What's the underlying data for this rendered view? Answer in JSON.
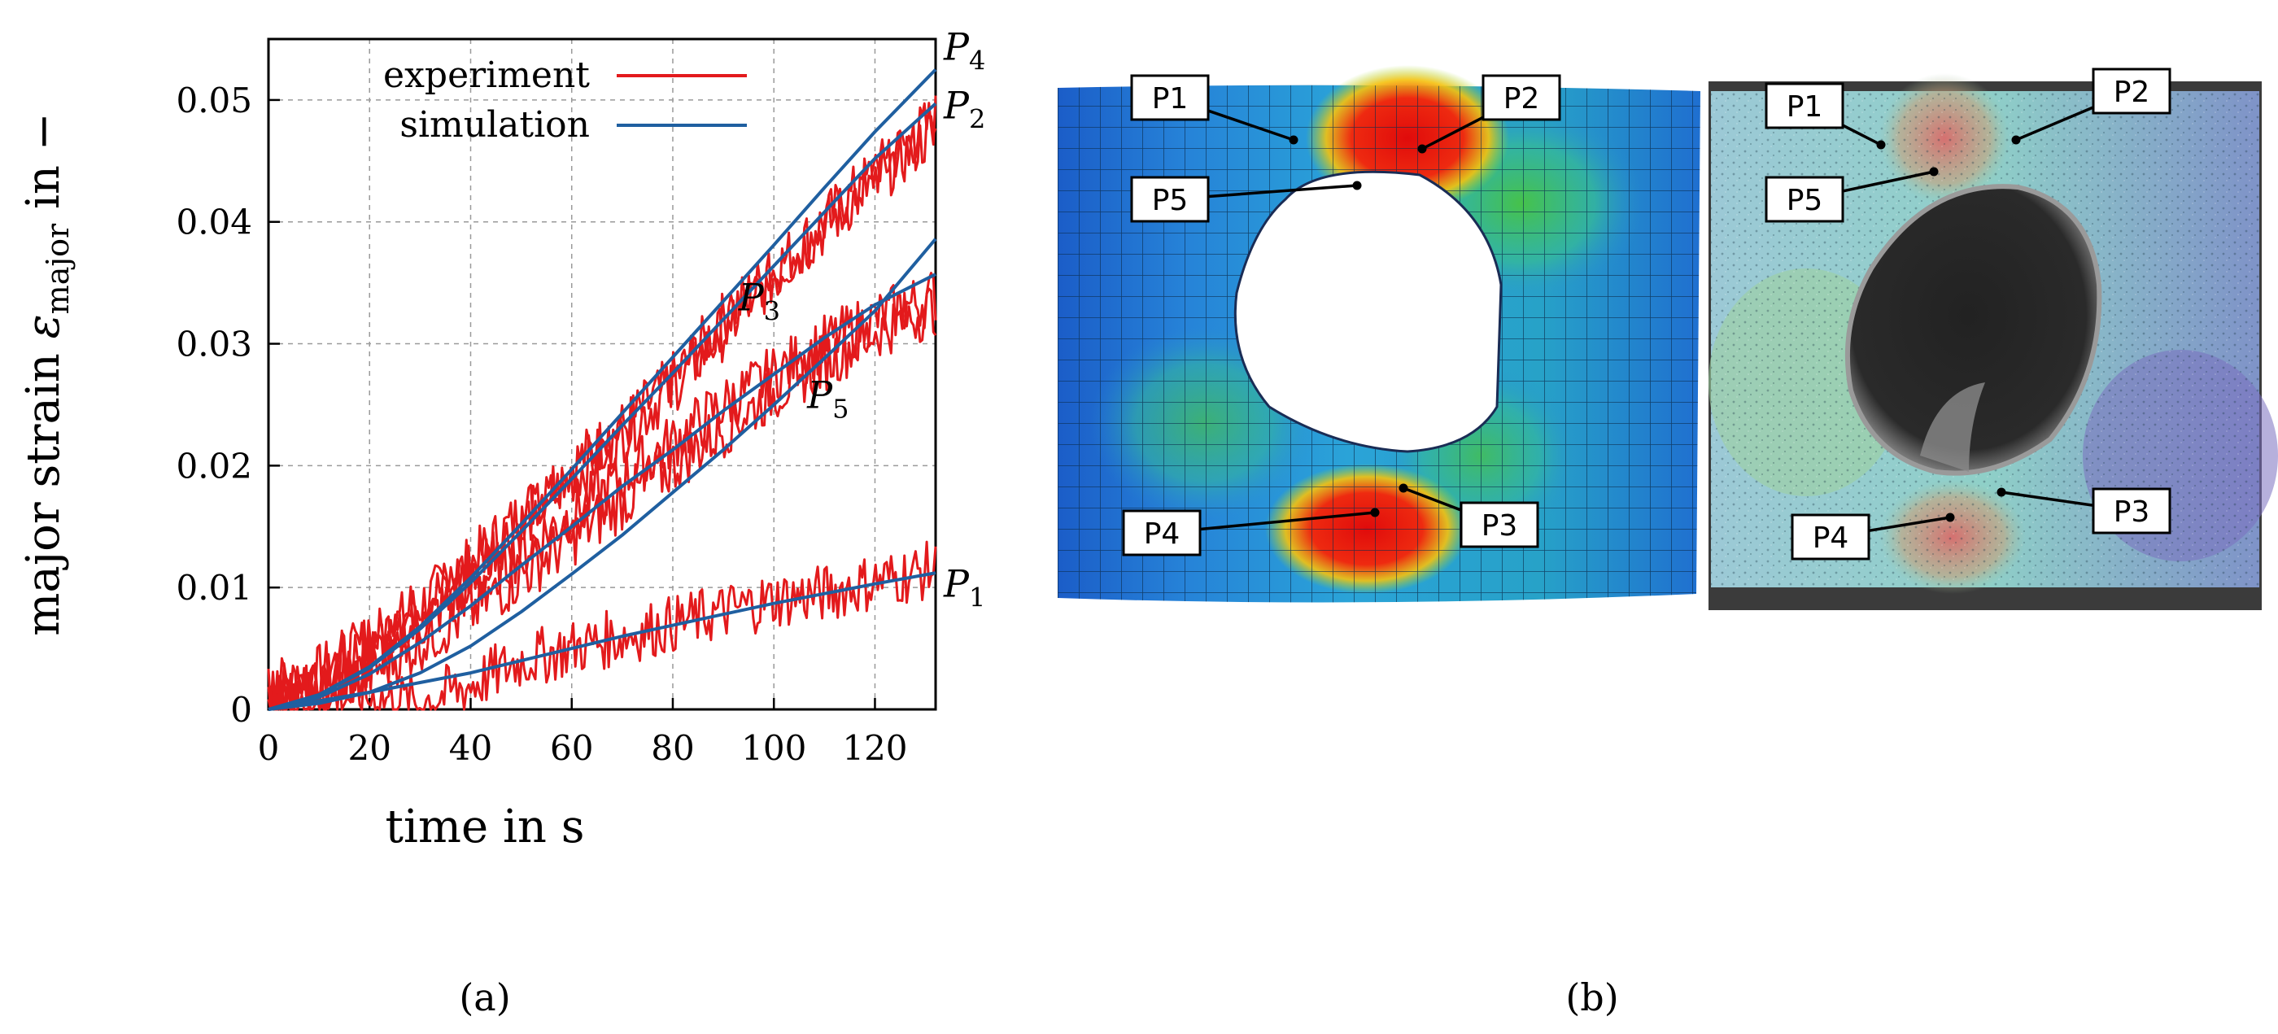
{
  "chart_data": {
    "type": "line",
    "title": "",
    "xlabel": "time in s",
    "ylabel_prefix": "major strain ",
    "ylabel_symbol": "ε",
    "ylabel_subscript": "major",
    "ylabel_suffix": " in −",
    "xlim": [
      0,
      132
    ],
    "ylim": [
      0,
      0.055
    ],
    "xticks": [
      0,
      20,
      40,
      60,
      80,
      100,
      120
    ],
    "yticks": [
      0,
      0.01,
      0.02,
      0.03,
      0.04,
      0.05
    ],
    "ytick_labels": [
      "0",
      "0.01",
      "0.02",
      "0.03",
      "0.04",
      "0.05"
    ],
    "grid": true,
    "legend_position": "top-left",
    "legend": [
      {
        "label": "experiment",
        "color": "#e31a1c"
      },
      {
        "label": "simulation",
        "color": "#1f5fa0"
      }
    ],
    "series": [
      {
        "name": "P4",
        "kind": "simulation",
        "x": [
          0,
          10,
          20,
          30,
          40,
          50,
          60,
          70,
          80,
          90,
          100,
          110,
          120,
          132
        ],
        "y": [
          0,
          0.0012,
          0.0035,
          0.0068,
          0.0108,
          0.0152,
          0.0197,
          0.0243,
          0.0289,
          0.0335,
          0.0381,
          0.0428,
          0.0474,
          0.0525
        ]
      },
      {
        "name": "P2",
        "kind": "simulation",
        "x": [
          0,
          10,
          20,
          30,
          40,
          50,
          60,
          70,
          80,
          90,
          100,
          110,
          120,
          132
        ],
        "y": [
          0,
          0.0012,
          0.0034,
          0.0066,
          0.0104,
          0.0146,
          0.0189,
          0.0233,
          0.0276,
          0.032,
          0.0364,
          0.0408,
          0.0452,
          0.0497
        ]
      },
      {
        "name": "P3",
        "kind": "simulation",
        "x": [
          0,
          10,
          20,
          30,
          40,
          50,
          60,
          70,
          80,
          90,
          100,
          110,
          120,
          132
        ],
        "y": [
          0,
          0.001,
          0.0029,
          0.0055,
          0.0085,
          0.0118,
          0.015,
          0.0183,
          0.0213,
          0.0245,
          0.0275,
          0.0305,
          0.0332,
          0.0357
        ]
      },
      {
        "name": "P5",
        "kind": "simulation",
        "x": [
          0,
          10,
          20,
          30,
          40,
          50,
          60,
          70,
          80,
          90,
          100,
          110,
          120,
          132
        ],
        "y": [
          0,
          0.0005,
          0.0014,
          0.003,
          0.0052,
          0.008,
          0.0111,
          0.0143,
          0.0178,
          0.0213,
          0.025,
          0.0288,
          0.0327,
          0.0386
        ]
      },
      {
        "name": "P1",
        "kind": "simulation",
        "x": [
          0,
          10,
          20,
          30,
          40,
          50,
          60,
          70,
          80,
          90,
          100,
          110,
          120,
          132
        ],
        "y": [
          0,
          0.0007,
          0.0014,
          0.0022,
          0.003,
          0.004,
          0.005,
          0.006,
          0.0069,
          0.0078,
          0.0087,
          0.0095,
          0.0103,
          0.0112
        ]
      },
      {
        "name": "P4",
        "kind": "experiment",
        "x": [
          0,
          10,
          20,
          30,
          40,
          50,
          60,
          70,
          80,
          90,
          100,
          110,
          120,
          132
        ],
        "y": [
          0.0015,
          0.003,
          0.0055,
          0.0085,
          0.012,
          0.016,
          0.02,
          0.023,
          0.027,
          0.032,
          0.036,
          0.04,
          0.044,
          0.0485
        ]
      },
      {
        "name": "P2",
        "kind": "experiment",
        "x": [
          0,
          10,
          20,
          30,
          40,
          50,
          60,
          70,
          80,
          90,
          100,
          110,
          120,
          132
        ],
        "y": [
          0.0015,
          0.003,
          0.0055,
          0.0085,
          0.0118,
          0.0152,
          0.019,
          0.0225,
          0.0265,
          0.031,
          0.0355,
          0.0395,
          0.0435,
          0.0475
        ]
      },
      {
        "name": "P3",
        "kind": "experiment",
        "x": [
          0,
          10,
          20,
          30,
          40,
          50,
          60,
          70,
          80,
          90,
          100,
          110,
          120,
          132
        ],
        "y": [
          0.001,
          0.002,
          0.004,
          0.007,
          0.01,
          0.013,
          0.016,
          0.019,
          0.022,
          0.025,
          0.0275,
          0.03,
          0.032,
          0.034
        ]
      },
      {
        "name": "P5",
        "kind": "experiment",
        "x": [
          0,
          10,
          20,
          30,
          40,
          50,
          60,
          70,
          80,
          90,
          100,
          110,
          120,
          132
        ],
        "y": [
          0.001,
          0.0015,
          0.003,
          0.0055,
          0.008,
          0.011,
          0.014,
          0.017,
          0.02,
          0.023,
          0.026,
          0.0285,
          0.031,
          0.033
        ]
      },
      {
        "name": "P1",
        "kind": "experiment",
        "x": [
          0,
          10,
          20,
          30,
          40,
          50,
          60,
          70,
          80,
          90,
          100,
          110,
          120,
          132
        ],
        "y": [
          0.001,
          0.0012,
          0.001,
          0.0005,
          0.002,
          0.004,
          0.005,
          0.006,
          0.007,
          0.008,
          0.009,
          0.0095,
          0.0105,
          0.0115
        ]
      }
    ],
    "annotations": [
      {
        "text": "P",
        "sub": "4",
        "at_series": "P4"
      },
      {
        "text": "P",
        "sub": "2",
        "at_series": "P2"
      },
      {
        "text": "P",
        "sub": "3",
        "at_series": "P3"
      },
      {
        "text": "P",
        "sub": "5",
        "at_series": "P5"
      },
      {
        "text": "P",
        "sub": "1",
        "at_series": "P1"
      }
    ]
  },
  "captions": {
    "a": "(a)",
    "b": "(b)"
  },
  "panel_b": {
    "simulation_callouts": [
      "P1",
      "P2",
      "P5",
      "P4",
      "P3"
    ],
    "experiment_callouts": [
      "P1",
      "P2",
      "P5",
      "P4",
      "P3"
    ],
    "colors": {
      "low": "#1a4fc0",
      "mid": "#3fbf5f",
      "high": "#e01010",
      "hole": "#ffffff"
    }
  }
}
